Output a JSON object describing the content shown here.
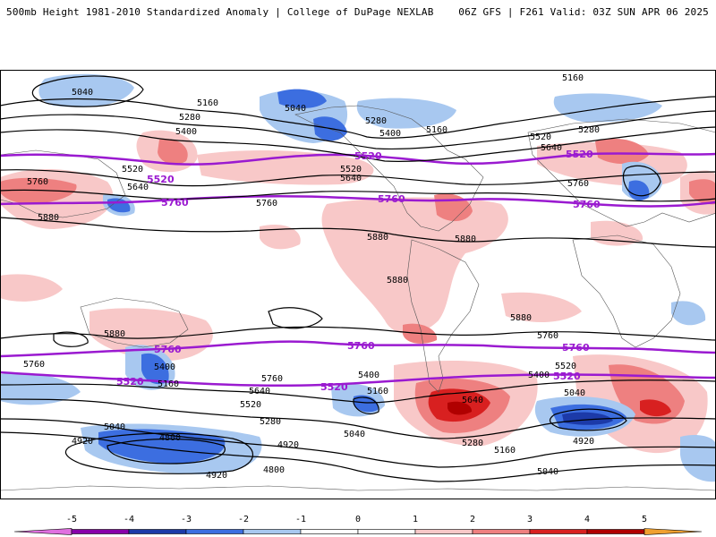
{
  "header": {
    "left": "500mb Height 1981-2010 Standardized Anomaly | College of DuPage NEXLAB",
    "right": "06Z GFS | F261 Valid: 03Z SUN APR 06 2025"
  },
  "colors": {
    "neg5": "#e070e0",
    "neg4": "#8800aa",
    "neg3": "#1c3aa8",
    "neg2": "#3c6ee0",
    "neg1": "#a8c8f0",
    "zero": "#ffffff",
    "pos1": "#f8c8c8",
    "pos2": "#ee8080",
    "pos3": "#d82020",
    "pos4": "#b00000",
    "pos5": "#f0a030",
    "ref_contour": "#9a1ad0",
    "height_contour": "#000000"
  },
  "colorbar": {
    "ticks": [
      "-5",
      "-4",
      "-3",
      "-2",
      "-1",
      "0",
      "1",
      "2",
      "3",
      "4",
      "5"
    ]
  },
  "contour_labels": {
    "l5040a": "5040",
    "l5160a": "5160",
    "l5280a": "5280",
    "l5400a": "5400",
    "l5520a": "5520",
    "l5640a": "5640",
    "l5760a": "5760",
    "l5880a": "5880",
    "l5040b": "5040",
    "l5280b": "5280",
    "l5400b": "5400",
    "l5160b": "5160",
    "l5520b": "5520",
    "l5640b": "5640",
    "l5760b": "5760",
    "l5880b": "5880",
    "l5880c": "5880",
    "l5880d": "5880",
    "l5160c": "5160",
    "l5280c": "5280",
    "l5520c": "5520",
    "l5640c": "5640",
    "l5760c": "5760",
    "s5880a": "5880",
    "s5760a": "5760",
    "s5400a": "5400",
    "s5160a": "5160",
    "s5640a": "5640",
    "s5520a": "5520",
    "s5280a": "5280",
    "s5040a": "5040",
    "s4920a": "4920",
    "s4800a": "4800",
    "s4920b": "4920",
    "s4800b": "4800",
    "s4920c": "4920",
    "s5760b": "5760",
    "s5400b": "5400",
    "s5160b": "5160",
    "s5040b": "5040",
    "s5640b": "5640",
    "s5280b": "5280",
    "s5160c": "5160",
    "s5040c": "5040",
    "s5760c": "5760",
    "s5520b": "5520",
    "s5400c": "5400",
    "s5040d": "5040",
    "s4920d": "4920",
    "s5880b": "5880"
  },
  "ref_labels": {
    "r5520a": "5520",
    "r5520b": "5520",
    "r5520c": "5520",
    "r5760a": "5760",
    "r5760b": "5760",
    "r5760c": "5760",
    "r5760d": "5760",
    "r5760e": "5760",
    "r5760f": "5760",
    "r5520d": "5520",
    "r5520e": "5520",
    "r5520f": "5520"
  }
}
